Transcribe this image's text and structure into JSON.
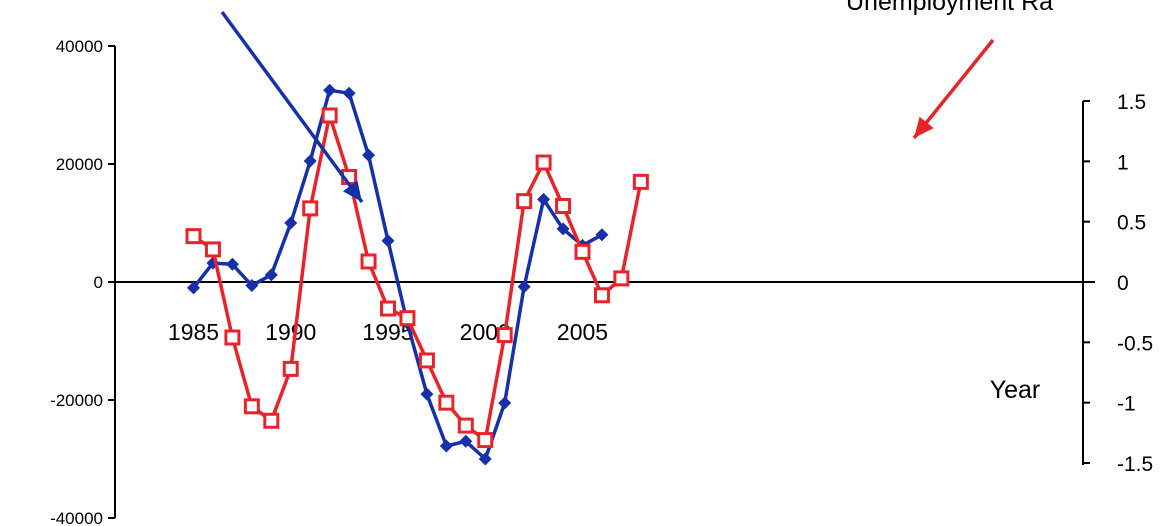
{
  "chart_data": {
    "type": "line",
    "title": "",
    "xlabel": "Year",
    "ylabel": "",
    "y2label": "",
    "annotation_right": "Unemployment Ra",
    "x_ticks": [
      "1985",
      "1990",
      "1995",
      "2000",
      "2005"
    ],
    "ylim": [
      -40000,
      40000
    ],
    "y_ticks": [
      "40000",
      "20000",
      "0",
      "-20000",
      "-40000"
    ],
    "y2lim": [
      -1.5,
      1.5
    ],
    "y2_ticks": [
      "1.5",
      "1",
      "0.5",
      "0",
      "-0.5",
      "-1",
      "-1.5"
    ],
    "grid": false,
    "series": [
      {
        "axis": "left",
        "color": "#1530a8",
        "marker": "diamond-filled",
        "x": [
          1985,
          1986,
          1987,
          1988,
          1989,
          1990,
          1991,
          1992,
          1993,
          1994,
          1995,
          1996,
          1997,
          1998,
          1999,
          2000,
          2001,
          2002,
          2003,
          2004,
          2005,
          2006
        ],
        "values": [
          -1000,
          3200,
          3000,
          -600,
          1200,
          10000,
          20500,
          32500,
          32000,
          21500,
          7000,
          -7000,
          -19000,
          -27800,
          -27000,
          -30000,
          -20500,
          -800,
          14000,
          9000,
          6200,
          8000
        ]
      },
      {
        "axis": "right",
        "color": "#e8232a",
        "marker": "square-open",
        "x": [
          1985,
          1986,
          1987,
          1988,
          1989,
          1990,
          1991,
          1992,
          1993,
          1994,
          1995,
          1996,
          1997,
          1998,
          1999,
          2000,
          2001,
          2002,
          2003,
          2004,
          2005,
          2006,
          2007,
          2008
        ],
        "values": [
          0.38,
          0.27,
          -0.46,
          -1.03,
          -1.15,
          -0.72,
          0.61,
          1.38,
          0.87,
          0.17,
          -0.22,
          -0.3,
          -0.65,
          -1.0,
          -1.19,
          -1.31,
          -0.44,
          0.67,
          0.99,
          0.63,
          0.25,
          -0.11,
          0.03,
          0.83
        ]
      }
    ],
    "annotations": [
      {
        "type": "arrow",
        "color": "#1530a8",
        "target_series": 0,
        "target_x": 1989.6
      },
      {
        "type": "arrow",
        "color": "#e8232a",
        "target_series": 1,
        "target_x": 2003.3
      }
    ]
  }
}
